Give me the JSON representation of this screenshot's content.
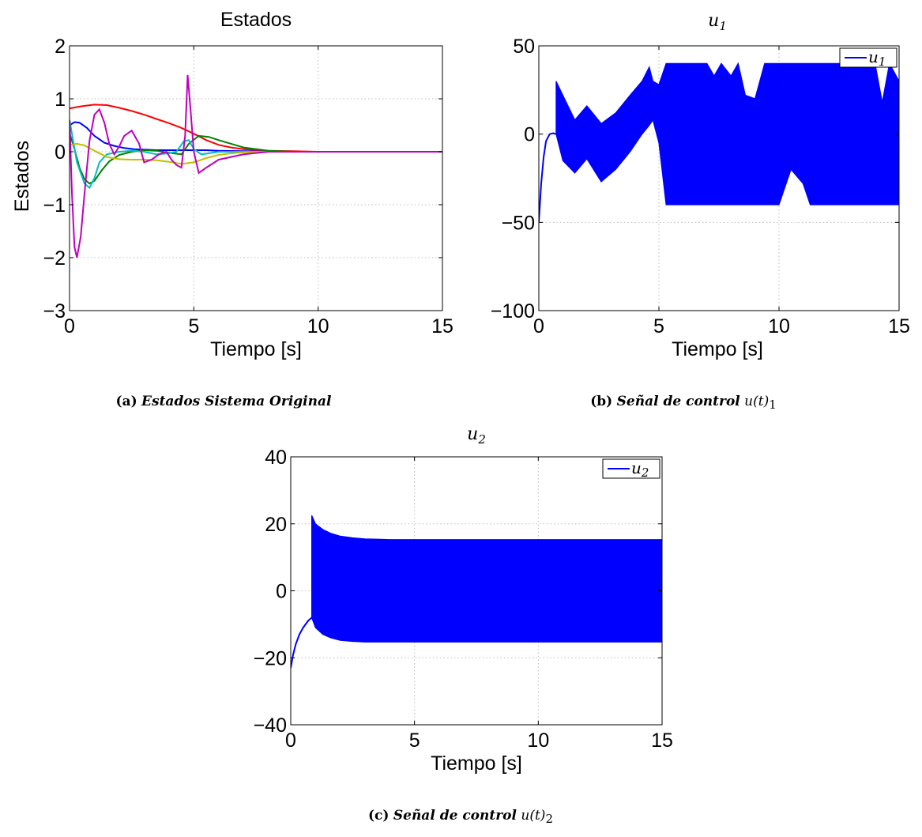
{
  "chart_data": [
    {
      "id": "a",
      "type": "line",
      "title": "Estados",
      "xlabel": "Tiempo [s]",
      "ylabel": "Estados",
      "xlim": [
        0,
        15
      ],
      "ylim": [
        -3,
        2
      ],
      "xticks": [
        0,
        5,
        10,
        15
      ],
      "yticks": [
        -3,
        -2,
        -1,
        0,
        1,
        2
      ],
      "grid": true,
      "caption": {
        "tag": "(a)",
        "text": "Estados Sistema Original",
        "math": "",
        "sub": ""
      },
      "series": [
        {
          "color": "#ff0000",
          "x": [
            0,
            0.5,
            1,
            1.5,
            2,
            2.5,
            3,
            3.5,
            4,
            4.5,
            5,
            5.5,
            6,
            6.5,
            7,
            8,
            9,
            10,
            11,
            12,
            13,
            14,
            15
          ],
          "y": [
            0.82,
            0.86,
            0.89,
            0.88,
            0.83,
            0.77,
            0.7,
            0.62,
            0.54,
            0.45,
            0.34,
            0.22,
            0.13,
            0.08,
            0.05,
            0.02,
            0.01,
            0.0,
            0.0,
            0.0,
            0.0,
            0.0,
            0.0
          ]
        },
        {
          "color": "#0000ff",
          "x": [
            0,
            0.2,
            0.4,
            0.7,
            1,
            1.4,
            1.8,
            2.2,
            2.6,
            3,
            3.5,
            4,
            4.5,
            5,
            5.5,
            6,
            7,
            8,
            10,
            12,
            15
          ],
          "y": [
            0.5,
            0.56,
            0.55,
            0.45,
            0.3,
            0.17,
            0.11,
            0.07,
            0.05,
            0.04,
            0.03,
            0.03,
            0.03,
            0.03,
            0.03,
            0.02,
            0.01,
            0.0,
            0.0,
            0.0,
            0.0
          ]
        },
        {
          "color": "#008000",
          "x": [
            0,
            0.2,
            0.4,
            0.6,
            0.8,
            1,
            1.3,
            1.6,
            2,
            2.5,
            3,
            3.5,
            4,
            4.5,
            4.8,
            5.2,
            5.6,
            6,
            6.5,
            7,
            8,
            9,
            10,
            12,
            15
          ],
          "y": [
            0.35,
            0.05,
            -0.3,
            -0.52,
            -0.6,
            -0.55,
            -0.35,
            -0.18,
            -0.06,
            0.0,
            0.03,
            0.02,
            -0.02,
            -0.05,
            0.15,
            0.3,
            0.28,
            0.22,
            0.15,
            0.08,
            0.02,
            0.0,
            0.0,
            0.0,
            0.0
          ]
        },
        {
          "color": "#00bfbf",
          "x": [
            0,
            0.3,
            0.6,
            0.8,
            1,
            1.2,
            1.5,
            2,
            2.5,
            3,
            3.5,
            4,
            4.3,
            4.6,
            4.8,
            5,
            5.3,
            5.6,
            6,
            7,
            8,
            10,
            12,
            15
          ],
          "y": [
            0.6,
            -0.2,
            -0.6,
            -0.68,
            -0.5,
            -0.2,
            -0.05,
            0.0,
            0.02,
            0.0,
            -0.05,
            -0.03,
            0.0,
            0.2,
            0.22,
            0.05,
            -0.05,
            -0.03,
            0.0,
            0.0,
            0.0,
            0.0,
            0.0,
            0.0
          ]
        },
        {
          "color": "#bfbf00",
          "x": [
            0,
            0.3,
            0.6,
            1,
            1.5,
            2,
            2.5,
            3,
            3.5,
            4,
            4.5,
            5,
            5.5,
            6,
            6.5,
            7,
            8,
            10,
            12,
            15
          ],
          "y": [
            0.13,
            0.15,
            0.12,
            0.02,
            -0.1,
            -0.14,
            -0.15,
            -0.15,
            -0.16,
            -0.19,
            -0.23,
            -0.2,
            -0.12,
            -0.06,
            -0.03,
            -0.01,
            0.0,
            0.0,
            0.0,
            0.0
          ]
        },
        {
          "color": "#bf00bf",
          "x": [
            0,
            0.1,
            0.2,
            0.3,
            0.45,
            0.6,
            0.8,
            1,
            1.2,
            1.4,
            1.6,
            1.8,
            2,
            2.2,
            2.5,
            2.8,
            3,
            3.3,
            3.6,
            3.9,
            4.1,
            4.3,
            4.5,
            4.65,
            4.75,
            4.85,
            5,
            5.2,
            5.5,
            6,
            7,
            8,
            10,
            12,
            15
          ],
          "y": [
            0.6,
            -0.8,
            -1.8,
            -2.0,
            -1.6,
            -0.8,
            0.2,
            0.7,
            0.8,
            0.55,
            0.15,
            -0.05,
            0.1,
            0.3,
            0.4,
            0.15,
            -0.2,
            -0.15,
            -0.05,
            0.0,
            -0.15,
            -0.25,
            -0.3,
            0.3,
            1.45,
            0.9,
            0.0,
            -0.4,
            -0.3,
            -0.15,
            -0.05,
            0.0,
            0.0,
            0.0,
            0.0
          ]
        }
      ]
    },
    {
      "id": "b",
      "type": "line",
      "title": "u",
      "title_sub": "1",
      "xlabel": "Tiempo [s]",
      "ylabel": "",
      "xlim": [
        0,
        15
      ],
      "ylim": [
        -100,
        50
      ],
      "xticks": [
        0,
        5,
        10,
        15
      ],
      "yticks": [
        -100,
        -50,
        0,
        50
      ],
      "grid": true,
      "legend": {
        "position": "top-right",
        "label": "u",
        "label_sub": "1"
      },
      "caption": {
        "tag": "(b)",
        "text": "Señal de control",
        "math": "u(t)",
        "sub": "1"
      },
      "series": [
        {
          "name": "u1",
          "color": "#0000ff",
          "x": [
            0,
            0.1,
            0.2,
            0.3,
            0.45,
            0.6,
            0.72
          ],
          "y": [
            -50,
            -28,
            -13,
            -4,
            0,
            0.5,
            0
          ]
        },
        {
          "name": "u1 envelope",
          "color": "#0000ff",
          "fill": true,
          "x": [
            0.72,
            1.0,
            1.5,
            2.0,
            2.6,
            3.2,
            3.8,
            4.3,
            4.6,
            4.75,
            5.0,
            5.3,
            6,
            7,
            7.3,
            7.6,
            8,
            8.3,
            8.6,
            9,
            9.4,
            10,
            10.5,
            11,
            11.3,
            11.8,
            12.5,
            13.5,
            14,
            14.3,
            14.6,
            15
          ],
          "upper": [
            30,
            22,
            8,
            16,
            6,
            12,
            22,
            30,
            38,
            30,
            28,
            40,
            40,
            40,
            33,
            40,
            33,
            40,
            22,
            20,
            40,
            40,
            40,
            40,
            40,
            40,
            40,
            40,
            40,
            18,
            40,
            30
          ],
          "lower": [
            0,
            -15,
            -22,
            -14,
            -27,
            -20,
            -10,
            0,
            5,
            8,
            -5,
            -40,
            -40,
            -40,
            -40,
            -40,
            -40,
            -40,
            -40,
            -40,
            -40,
            -40,
            -20,
            -28,
            -40,
            -40,
            -40,
            -40,
            -40,
            -40,
            -40,
            -40
          ]
        }
      ]
    },
    {
      "id": "c",
      "type": "line",
      "title": "u",
      "title_sub": "2",
      "xlabel": "Tiempo [s]",
      "ylabel": "",
      "xlim": [
        0,
        15
      ],
      "ylim": [
        -40,
        40
      ],
      "xticks": [
        0,
        5,
        10,
        15
      ],
      "yticks": [
        -40,
        -20,
        0,
        20,
        40
      ],
      "grid": true,
      "legend": {
        "position": "top-right",
        "label": "u",
        "label_sub": "2"
      },
      "caption": {
        "tag": "(c)",
        "text": "Señal de control",
        "math": "u(t)",
        "sub": "2"
      },
      "series": [
        {
          "name": "u2",
          "color": "#0000ff",
          "x": [
            0,
            0.1,
            0.2,
            0.35,
            0.5,
            0.7,
            0.85
          ],
          "y": [
            -23,
            -19,
            -16,
            -13,
            -11,
            -9,
            -8
          ]
        },
        {
          "name": "u2 envelope",
          "color": "#0000ff",
          "fill": true,
          "x": [
            0.85,
            1.0,
            1.3,
            1.6,
            2.0,
            2.5,
            3.0,
            3.5,
            4.0,
            5.0,
            7.0,
            10.0,
            15.0
          ],
          "upper": [
            22.5,
            20,
            18.3,
            17.2,
            16.3,
            15.8,
            15.5,
            15.4,
            15.3,
            15.3,
            15.3,
            15.3,
            15.3
          ],
          "lower": [
            -8,
            -11,
            -13,
            -14,
            -14.8,
            -15.1,
            -15.3,
            -15.3,
            -15.3,
            -15.3,
            -15.3,
            -15.3,
            -15.3
          ]
        }
      ]
    }
  ]
}
